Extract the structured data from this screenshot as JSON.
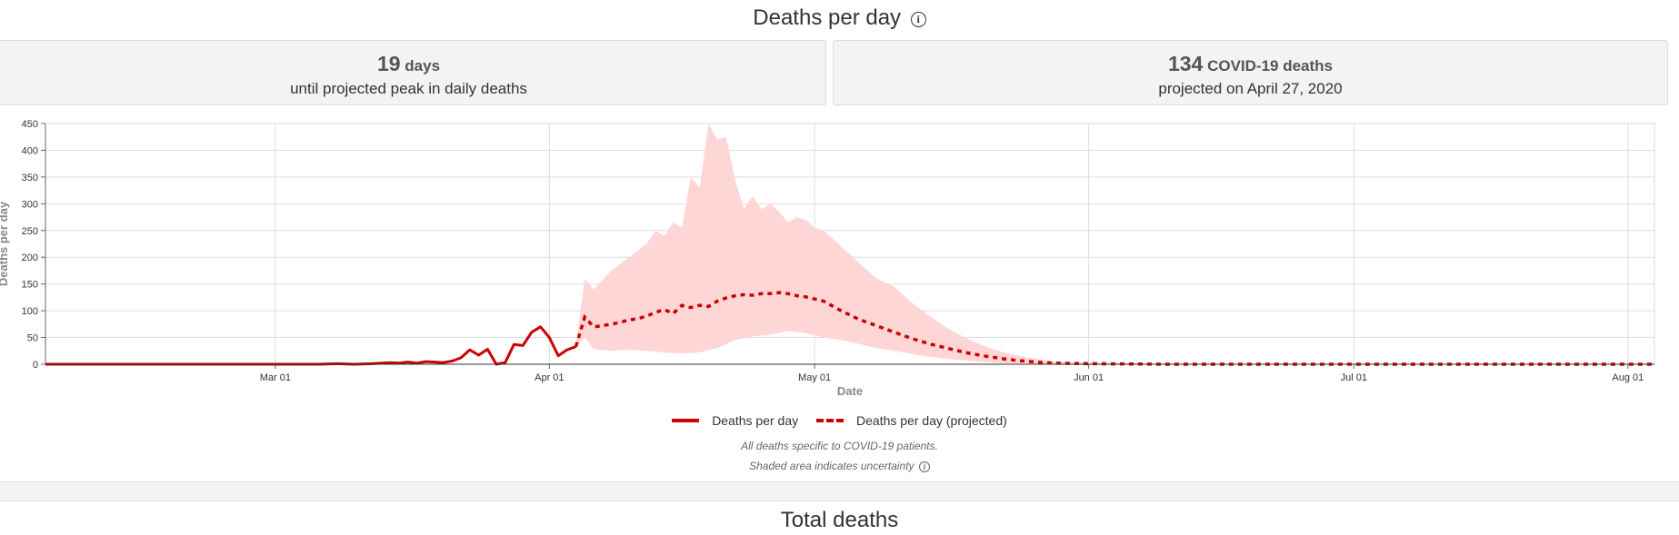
{
  "header": {
    "title": "Deaths per day",
    "info_glyph": "i"
  },
  "cards": {
    "peak": {
      "value": "19",
      "unit": "days",
      "caption": "until projected peak in daily deaths"
    },
    "deaths": {
      "value": "134",
      "unit": "COVID-19 deaths",
      "caption": "projected on April 27, 2020"
    }
  },
  "notes": {
    "line1": "All deaths specific to COVID-19 patients.",
    "line2": "Shaded area indicates uncertainty",
    "info_glyph": "i"
  },
  "next_section": {
    "title": "Total deaths"
  },
  "colors": {
    "series": "#cc0000",
    "band": "#ffd6d6",
    "grid": "#dddddd"
  },
  "chart_data": {
    "type": "line",
    "title": "Deaths per day",
    "xlabel": "Date",
    "ylabel": "Deaths per day",
    "x_start": "2020-02-04",
    "x_end": "2020-08-04",
    "ylim": [
      0,
      450
    ],
    "yticks": [
      0,
      50,
      100,
      150,
      200,
      250,
      300,
      350,
      400,
      450
    ],
    "xticks": [
      {
        "date": "2020-03-01",
        "label": "Mar 01"
      },
      {
        "date": "2020-04-01",
        "label": "Apr 01"
      },
      {
        "date": "2020-05-01",
        "label": "May 01"
      },
      {
        "date": "2020-06-01",
        "label": "Jun 01"
      },
      {
        "date": "2020-07-01",
        "label": "Jul 01"
      },
      {
        "date": "2020-08-01",
        "label": "Aug 01"
      }
    ],
    "legend": {
      "placement": "bottom-center",
      "entries": [
        "Deaths per day",
        "Deaths per day (projected)"
      ]
    },
    "series": [
      {
        "name": "Deaths per day",
        "style": "solid",
        "points": [
          [
            "2020-02-04",
            0
          ],
          [
            "2020-03-06",
            0
          ],
          [
            "2020-03-08",
            1
          ],
          [
            "2020-03-10",
            0
          ],
          [
            "2020-03-12",
            1
          ],
          [
            "2020-03-14",
            3
          ],
          [
            "2020-03-15",
            2
          ],
          [
            "2020-03-16",
            4
          ],
          [
            "2020-03-17",
            2
          ],
          [
            "2020-03-18",
            5
          ],
          [
            "2020-03-19",
            4
          ],
          [
            "2020-03-20",
            3
          ],
          [
            "2020-03-21",
            6
          ],
          [
            "2020-03-22",
            12
          ],
          [
            "2020-03-23",
            27
          ],
          [
            "2020-03-24",
            17
          ],
          [
            "2020-03-25",
            28
          ],
          [
            "2020-03-26",
            0
          ],
          [
            "2020-03-27",
            3
          ],
          [
            "2020-03-28",
            37
          ],
          [
            "2020-03-29",
            35
          ],
          [
            "2020-03-30",
            60
          ],
          [
            "2020-03-31",
            70
          ],
          [
            "2020-04-01",
            50
          ],
          [
            "2020-04-02",
            16
          ],
          [
            "2020-04-03",
            27
          ],
          [
            "2020-04-04",
            33
          ]
        ]
      },
      {
        "name": "Deaths per day (projected)",
        "style": "dashed",
        "points": [
          [
            "2020-04-04",
            33
          ],
          [
            "2020-04-05",
            88
          ],
          [
            "2020-04-06",
            70
          ],
          [
            "2020-04-07",
            72
          ],
          [
            "2020-04-08",
            75
          ],
          [
            "2020-04-09",
            78
          ],
          [
            "2020-04-10",
            83
          ],
          [
            "2020-04-11",
            85
          ],
          [
            "2020-04-12",
            90
          ],
          [
            "2020-04-13",
            97
          ],
          [
            "2020-04-14",
            102
          ],
          [
            "2020-04-15",
            95
          ],
          [
            "2020-04-16",
            110
          ],
          [
            "2020-04-17",
            106
          ],
          [
            "2020-04-18",
            110
          ],
          [
            "2020-04-19",
            108
          ],
          [
            "2020-04-20",
            118
          ],
          [
            "2020-04-21",
            124
          ],
          [
            "2020-04-22",
            128
          ],
          [
            "2020-04-23",
            130
          ],
          [
            "2020-04-24",
            129
          ],
          [
            "2020-04-25",
            132
          ],
          [
            "2020-04-26",
            132
          ],
          [
            "2020-04-27",
            134
          ],
          [
            "2020-04-28",
            132
          ],
          [
            "2020-04-29",
            128
          ],
          [
            "2020-04-30",
            126
          ],
          [
            "2020-05-02",
            118
          ],
          [
            "2020-05-04",
            100
          ],
          [
            "2020-05-06",
            84
          ],
          [
            "2020-05-08",
            72
          ],
          [
            "2020-05-10",
            60
          ],
          [
            "2020-05-12",
            48
          ],
          [
            "2020-05-14",
            38
          ],
          [
            "2020-05-16",
            30
          ],
          [
            "2020-05-18",
            22
          ],
          [
            "2020-05-20",
            16
          ],
          [
            "2020-05-22",
            11
          ],
          [
            "2020-05-24",
            7
          ],
          [
            "2020-05-26",
            4
          ],
          [
            "2020-05-28",
            2
          ],
          [
            "2020-06-01",
            1
          ],
          [
            "2020-06-10",
            0
          ],
          [
            "2020-08-04",
            0
          ]
        ]
      }
    ],
    "uncertainty_band": {
      "name": "Shaded area indicates uncertainty",
      "upper": [
        [
          "2020-04-04",
          33
        ],
        [
          "2020-04-05",
          160
        ],
        [
          "2020-04-06",
          140
        ],
        [
          "2020-04-08",
          175
        ],
        [
          "2020-04-10",
          200
        ],
        [
          "2020-04-12",
          225
        ],
        [
          "2020-04-13",
          250
        ],
        [
          "2020-04-14",
          240
        ],
        [
          "2020-04-15",
          265
        ],
        [
          "2020-04-16",
          255
        ],
        [
          "2020-04-17",
          350
        ],
        [
          "2020-04-18",
          330
        ],
        [
          "2020-04-19",
          450
        ],
        [
          "2020-04-20",
          420
        ],
        [
          "2020-04-21",
          425
        ],
        [
          "2020-04-22",
          345
        ],
        [
          "2020-04-23",
          290
        ],
        [
          "2020-04-24",
          315
        ],
        [
          "2020-04-25",
          290
        ],
        [
          "2020-04-26",
          300
        ],
        [
          "2020-04-27",
          285
        ],
        [
          "2020-04-28",
          265
        ],
        [
          "2020-04-29",
          275
        ],
        [
          "2020-04-30",
          270
        ],
        [
          "2020-05-01",
          255
        ],
        [
          "2020-05-02",
          250
        ],
        [
          "2020-05-04",
          220
        ],
        [
          "2020-05-06",
          190
        ],
        [
          "2020-05-08",
          160
        ],
        [
          "2020-05-10",
          145
        ],
        [
          "2020-05-12",
          115
        ],
        [
          "2020-05-14",
          90
        ],
        [
          "2020-05-16",
          68
        ],
        [
          "2020-05-18",
          50
        ],
        [
          "2020-05-20",
          35
        ],
        [
          "2020-05-22",
          24
        ],
        [
          "2020-05-24",
          16
        ],
        [
          "2020-05-26",
          10
        ],
        [
          "2020-05-28",
          6
        ],
        [
          "2020-06-01",
          3
        ],
        [
          "2020-06-10",
          1
        ],
        [
          "2020-08-04",
          0
        ]
      ],
      "lower": [
        [
          "2020-04-04",
          33
        ],
        [
          "2020-04-05",
          50
        ],
        [
          "2020-04-06",
          28
        ],
        [
          "2020-04-08",
          25
        ],
        [
          "2020-04-10",
          27
        ],
        [
          "2020-04-12",
          25
        ],
        [
          "2020-04-14",
          22
        ],
        [
          "2020-04-16",
          20
        ],
        [
          "2020-04-18",
          22
        ],
        [
          "2020-04-20",
          30
        ],
        [
          "2020-04-22",
          45
        ],
        [
          "2020-04-24",
          52
        ],
        [
          "2020-04-26",
          55
        ],
        [
          "2020-04-28",
          62
        ],
        [
          "2020-04-30",
          58
        ],
        [
          "2020-05-02",
          50
        ],
        [
          "2020-05-04",
          45
        ],
        [
          "2020-05-06",
          38
        ],
        [
          "2020-05-08",
          30
        ],
        [
          "2020-05-10",
          25
        ],
        [
          "2020-05-12",
          19
        ],
        [
          "2020-05-14",
          14
        ],
        [
          "2020-05-16",
          10
        ],
        [
          "2020-05-18",
          7
        ],
        [
          "2020-05-20",
          4
        ],
        [
          "2020-05-22",
          2
        ],
        [
          "2020-05-26",
          1
        ],
        [
          "2020-06-01",
          0
        ],
        [
          "2020-08-04",
          0
        ]
      ]
    }
  }
}
